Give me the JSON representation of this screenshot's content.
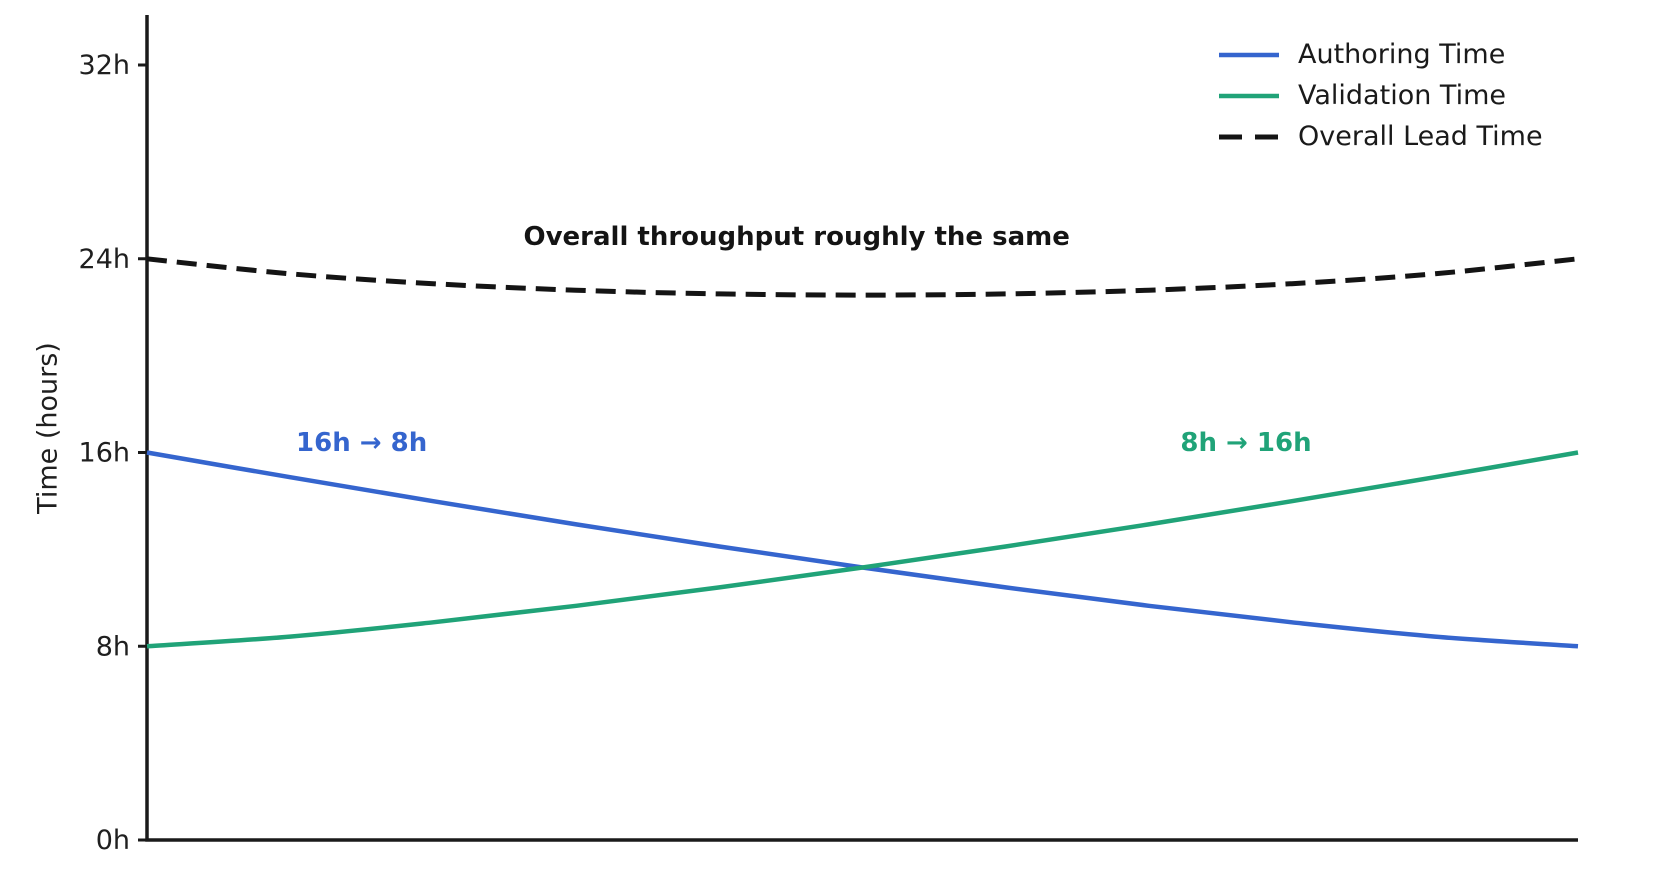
{
  "chart_data": {
    "type": "line",
    "title": "",
    "xlabel": "",
    "ylabel": "Time (hours)",
    "ylim": [
      0,
      34
    ],
    "grid": false,
    "background": "#ffffff",
    "axis_color": "#1a1a1a",
    "tick_label_color": "#1f1f1f",
    "xticks": [],
    "yticks": [
      {
        "value": 0,
        "label": "0h"
      },
      {
        "value": 8,
        "label": "8h"
      },
      {
        "value": 16,
        "label": "16h"
      },
      {
        "value": 24,
        "label": "24h"
      },
      {
        "value": 32,
        "label": "32h"
      }
    ],
    "x": [
      0,
      0.1,
      0.2,
      0.3,
      0.4,
      0.5,
      0.6,
      0.7,
      0.8,
      0.9,
      1
    ],
    "series": [
      {
        "name": "Authoring Time",
        "color": "#3565CE",
        "style": "solid",
        "values": [
          16,
          14.98,
          13.99,
          13.03,
          12.12,
          11.25,
          10.43,
          9.67,
          8.99,
          8.4,
          8
        ]
      },
      {
        "name": "Validation Time",
        "color": "#20A378",
        "style": "solid",
        "values": [
          8,
          8.4,
          8.99,
          9.67,
          10.43,
          11.25,
          12.12,
          13.03,
          13.99,
          14.98,
          16
        ]
      },
      {
        "name": "Overall Lead Time",
        "color": "#141414",
        "style": "dashed",
        "values": [
          24,
          23.38,
          22.97,
          22.7,
          22.55,
          22.5,
          22.55,
          22.7,
          22.97,
          23.38,
          24
        ]
      }
    ],
    "annotations": [
      {
        "text": "Overall throughput roughly the same",
        "color": "#141414",
        "x": 0.454,
        "y": 24.9
      },
      {
        "text": "16h → 8h",
        "color": "#3565CE",
        "x": 0.15,
        "y": 16.4
      },
      {
        "text": "8h → 16h",
        "color": "#20A378",
        "x": 0.768,
        "y": 16.4
      }
    ],
    "legend": {
      "position": "top-right",
      "frame": false,
      "entries": [
        "Authoring Time",
        "Validation Time",
        "Overall Lead Time"
      ]
    }
  }
}
